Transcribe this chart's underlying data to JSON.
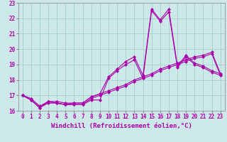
{
  "xlabel": "Windchill (Refroidissement éolien,°C)",
  "bg_color": "#cce8e8",
  "line_color": "#aa00aa",
  "grid_color": "#99cccc",
  "xlim": [
    -0.5,
    23.5
  ],
  "ylim": [
    16,
    23
  ],
  "xticks": [
    0,
    1,
    2,
    3,
    4,
    5,
    6,
    7,
    8,
    9,
    10,
    11,
    12,
    13,
    14,
    15,
    16,
    17,
    18,
    19,
    20,
    21,
    22,
    23
  ],
  "yticks": [
    16,
    17,
    18,
    19,
    20,
    21,
    22,
    23
  ],
  "lines": [
    [
      17.0,
      16.7,
      16.2,
      16.6,
      16.5,
      16.4,
      16.4,
      16.4,
      16.7,
      16.7,
      18.1,
      18.6,
      19.0,
      19.3,
      18.1,
      22.5,
      21.8,
      22.4,
      18.8,
      19.5,
      19.0,
      18.8,
      18.5,
      18.3
    ],
    [
      17.0,
      16.7,
      16.2,
      16.6,
      16.5,
      16.4,
      16.5,
      16.5,
      16.9,
      17.1,
      18.2,
      18.7,
      19.2,
      19.5,
      18.3,
      22.6,
      21.9,
      22.6,
      18.9,
      19.6,
      19.1,
      18.9,
      18.6,
      18.4
    ],
    [
      17.0,
      16.7,
      16.2,
      16.5,
      16.5,
      16.4,
      16.4,
      16.4,
      16.8,
      17.0,
      17.2,
      17.4,
      17.6,
      17.9,
      18.1,
      18.3,
      18.6,
      18.8,
      19.0,
      19.2,
      19.4,
      19.5,
      19.7,
      18.3
    ],
    [
      17.0,
      16.8,
      16.3,
      16.6,
      16.6,
      16.5,
      16.5,
      16.5,
      16.9,
      17.1,
      17.3,
      17.5,
      17.7,
      18.0,
      18.2,
      18.4,
      18.7,
      18.9,
      19.1,
      19.3,
      19.5,
      19.6,
      19.8,
      18.4
    ]
  ],
  "marker": "D",
  "markersize": 2.0,
  "linewidth": 0.8,
  "fontsize_label": 6.5,
  "fontsize_tick": 5.5
}
